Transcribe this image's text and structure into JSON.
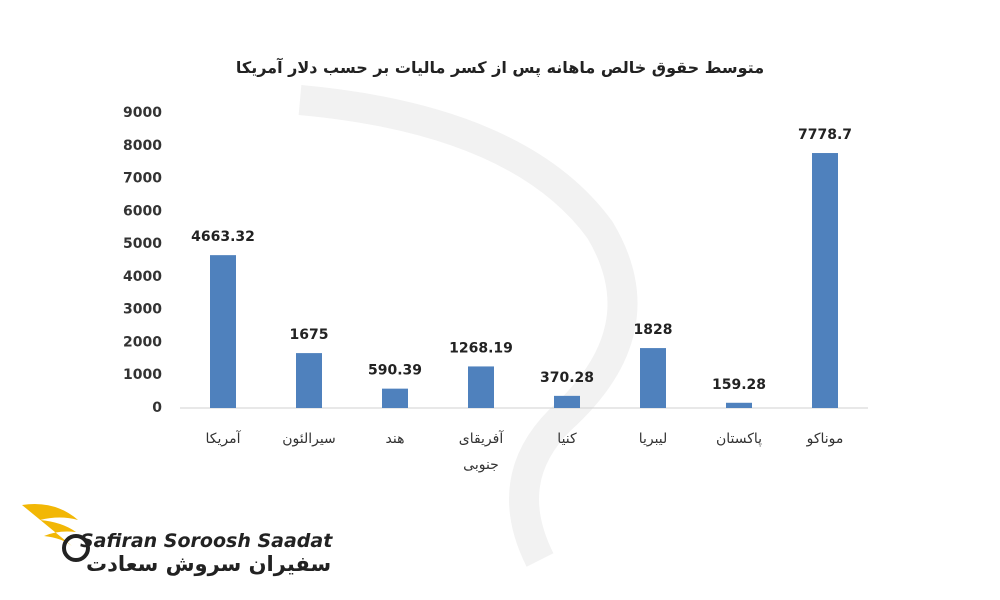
{
  "chart_data": {
    "type": "bar",
    "title": "متوسط حقوق خالص ماهانه پس از کسر مالیات بر حسب دلار آمریکا",
    "categories": [
      "آمریکا",
      "سیرالئون",
      "هند",
      "آفریقای جنوبی",
      "کنیا",
      "لیبریا",
      "پاکستان",
      "موناکو"
    ],
    "values": [
      4663.32,
      1675,
      590.39,
      1268.19,
      370.28,
      1828,
      159.28,
      7778.7
    ],
    "color": "#4f81bd",
    "ylim": [
      0,
      9000
    ],
    "yticks": [
      0,
      1000,
      2000,
      3000,
      4000,
      5000,
      6000,
      7000,
      8000,
      9000
    ],
    "grid": false
  },
  "logo": {
    "name_en": "Safiran Soroosh Saadat",
    "name_fa": "سفیران سروش سعادت"
  }
}
